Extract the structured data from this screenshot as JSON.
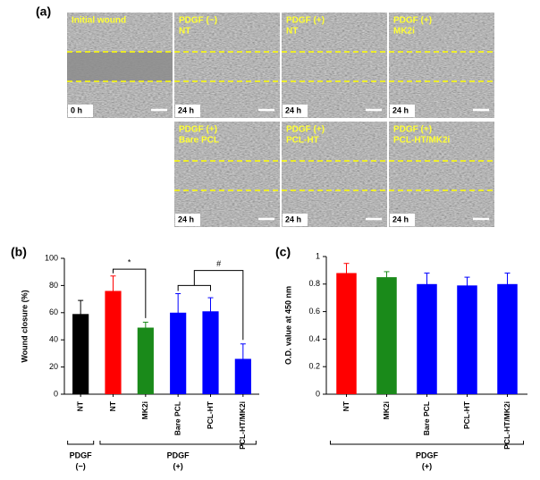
{
  "panel_a": {
    "label": "(a)",
    "tiles": [
      {
        "lines": [
          "Initial wound"
        ],
        "time": "0 h"
      },
      {
        "lines": [
          "PDGF (−)",
          "NT"
        ],
        "time": "24 h"
      },
      {
        "lines": [
          "PDGF (+)",
          "NT"
        ],
        "time": "24 h"
      },
      {
        "lines": [
          "PDGF (+)",
          "MK2i"
        ],
        "time": "24 h"
      },
      {
        "lines": [
          "PDGF (+)",
          "Bare PCL"
        ],
        "time": "24 h"
      },
      {
        "lines": [
          "PDGF (+)",
          "PCL-HT"
        ],
        "time": "24 h"
      },
      {
        "lines": [
          "PDGF (+)",
          "PCL-HT/MK2i"
        ],
        "time": "24 h"
      }
    ]
  },
  "chart_data": [
    {
      "type": "bar",
      "label": "(b)",
      "y_label": "Wound closure (%)",
      "categories": [
        "NT",
        "NT",
        "MK2i",
        "Bare PCL",
        "PCL-HT",
        "PCL-HT/MK2i"
      ],
      "values": [
        59,
        76,
        49,
        60,
        61,
        26
      ],
      "errors": [
        10,
        11,
        4,
        14,
        10,
        11
      ],
      "colors": [
        "#000000",
        "#ff0000",
        "#1a8a1a",
        "#0000ff",
        "#0000ff",
        "#0000ff"
      ],
      "ylim": [
        0,
        100
      ],
      "yticks": [
        0,
        20,
        40,
        60,
        80,
        100
      ],
      "annotations": [
        "*",
        "#"
      ],
      "groups": [
        {
          "name": "PDGF",
          "sign": "(−)"
        },
        {
          "name": "PDGF",
          "sign": "(+)"
        }
      ]
    },
    {
      "type": "bar",
      "label": "(c)",
      "y_label": "O.D. value at 450 nm",
      "categories": [
        "NT",
        "MK2i",
        "Bare PCL",
        "PCL-HT",
        "PCL-HT/MK2i"
      ],
      "values": [
        0.88,
        0.85,
        0.8,
        0.79,
        0.8
      ],
      "errors": [
        0.07,
        0.04,
        0.08,
        0.06,
        0.08
      ],
      "colors": [
        "#ff0000",
        "#1a8a1a",
        "#0000ff",
        "#0000ff",
        "#0000ff"
      ],
      "ylim": [
        0,
        1
      ],
      "yticks": [
        0,
        0.2,
        0.4,
        0.6,
        0.8,
        1
      ],
      "groups": [
        {
          "name": "PDGF",
          "sign": "(+)"
        }
      ]
    }
  ]
}
